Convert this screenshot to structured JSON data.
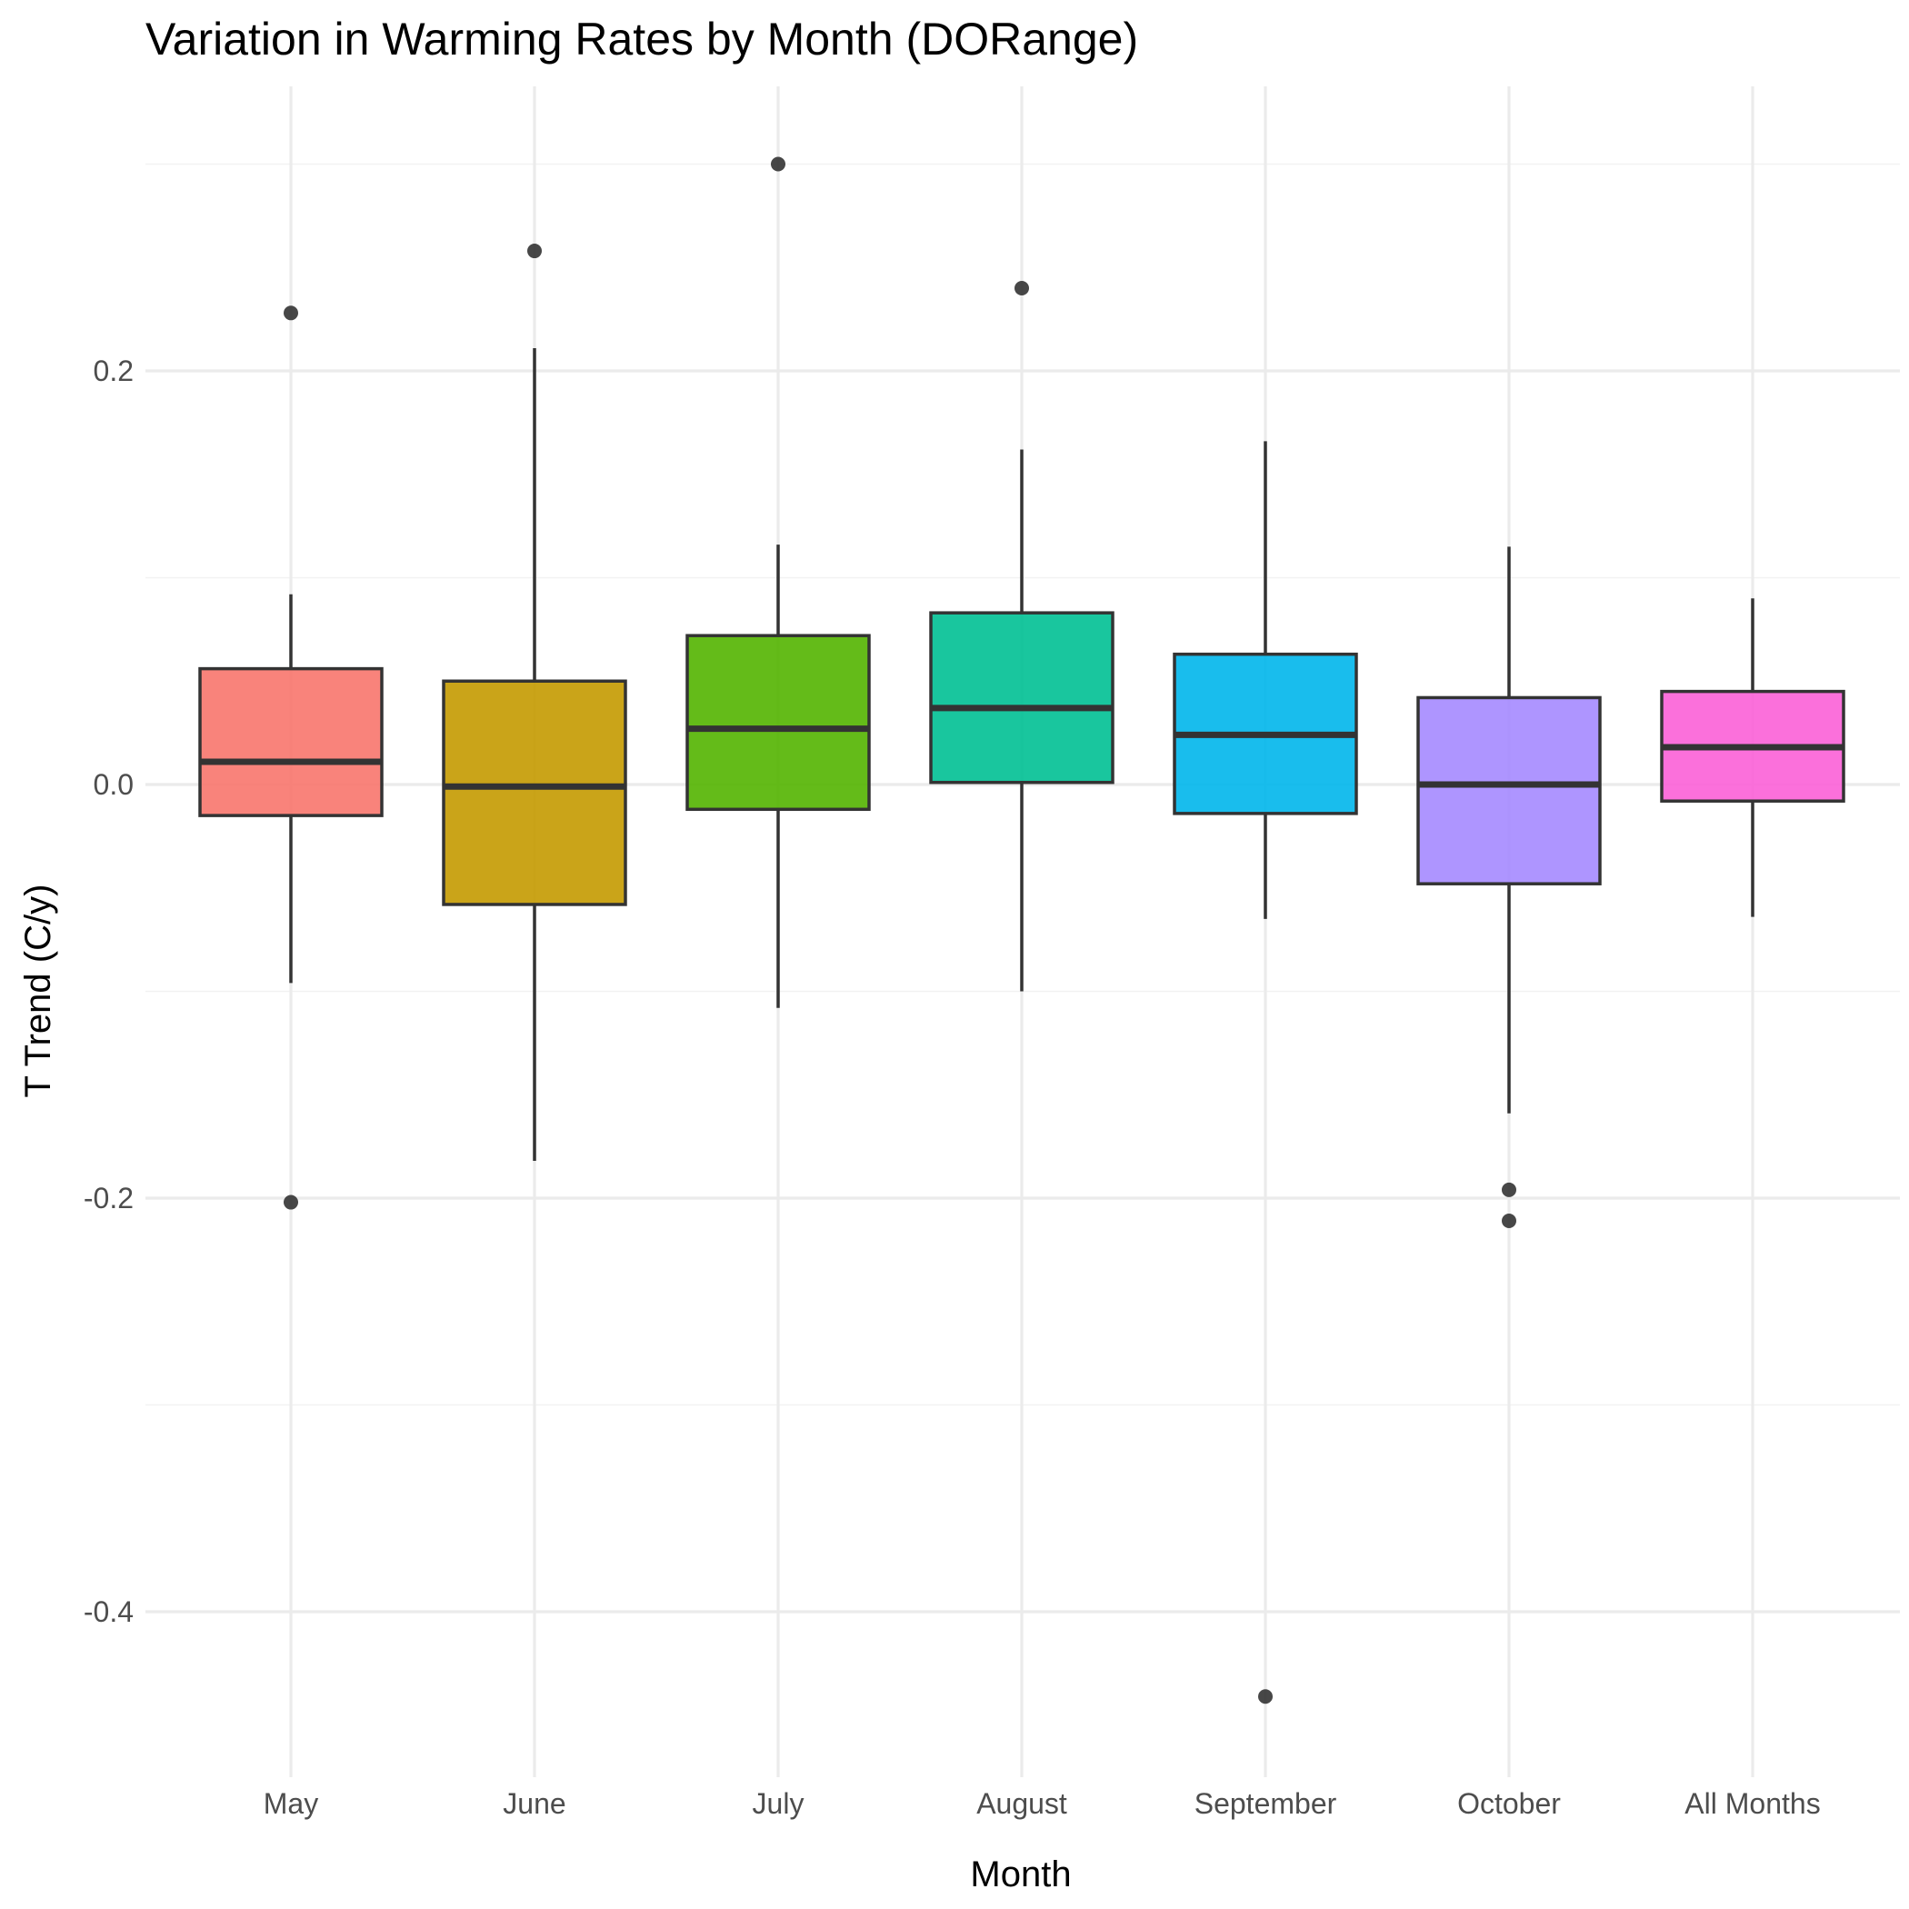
{
  "chart_data": {
    "type": "box",
    "title": "Variation in Warming Rates by Month (DORange)",
    "xlabel": "Month",
    "ylabel": "T Trend (C/y)",
    "ylim": [
      -0.48,
      0.34
    ],
    "yticks": [
      {
        "value": 0.2,
        "label": "0.2"
      },
      {
        "value": 0.0,
        "label": "0.0"
      },
      {
        "value": -0.2,
        "label": "-0.2"
      },
      {
        "value": -0.4,
        "label": "-0.4"
      }
    ],
    "grid": true,
    "legend": "none",
    "categories": [
      "May",
      "June",
      "July",
      "August",
      "September",
      "October",
      "All Months"
    ],
    "boxes": [
      {
        "category": "May",
        "color": "#F8766D",
        "q1": -0.015,
        "median": 0.011,
        "q3": 0.056,
        "whisker_low": -0.096,
        "whisker_high": 0.092,
        "outliers": [
          0.228,
          -0.202
        ]
      },
      {
        "category": "June",
        "color": "#C49A00",
        "q1": -0.058,
        "median": -0.001,
        "q3": 0.05,
        "whisker_low": -0.182,
        "whisker_high": 0.211,
        "outliers": [
          0.258
        ]
      },
      {
        "category": "July",
        "color": "#53B400",
        "q1": -0.012,
        "median": 0.027,
        "q3": 0.072,
        "whisker_low": -0.108,
        "whisker_high": 0.116,
        "outliers": [
          0.3
        ]
      },
      {
        "category": "August",
        "color": "#00C094",
        "q1": 0.001,
        "median": 0.037,
        "q3": 0.083,
        "whisker_low": -0.1,
        "whisker_high": 0.162,
        "outliers": [
          0.24
        ]
      },
      {
        "category": "September",
        "color": "#00B6EB",
        "q1": -0.014,
        "median": 0.024,
        "q3": 0.063,
        "whisker_low": -0.065,
        "whisker_high": 0.166,
        "outliers": [
          -0.441
        ]
      },
      {
        "category": "October",
        "color": "#A58AFF",
        "q1": -0.048,
        "median": 0.0,
        "q3": 0.042,
        "whisker_low": -0.159,
        "whisker_high": 0.115,
        "outliers": [
          -0.196,
          -0.211
        ]
      },
      {
        "category": "All Months",
        "color": "#FB61D7",
        "q1": -0.008,
        "median": 0.018,
        "q3": 0.045,
        "whisker_low": -0.064,
        "whisker_high": 0.09,
        "outliers": []
      }
    ]
  }
}
